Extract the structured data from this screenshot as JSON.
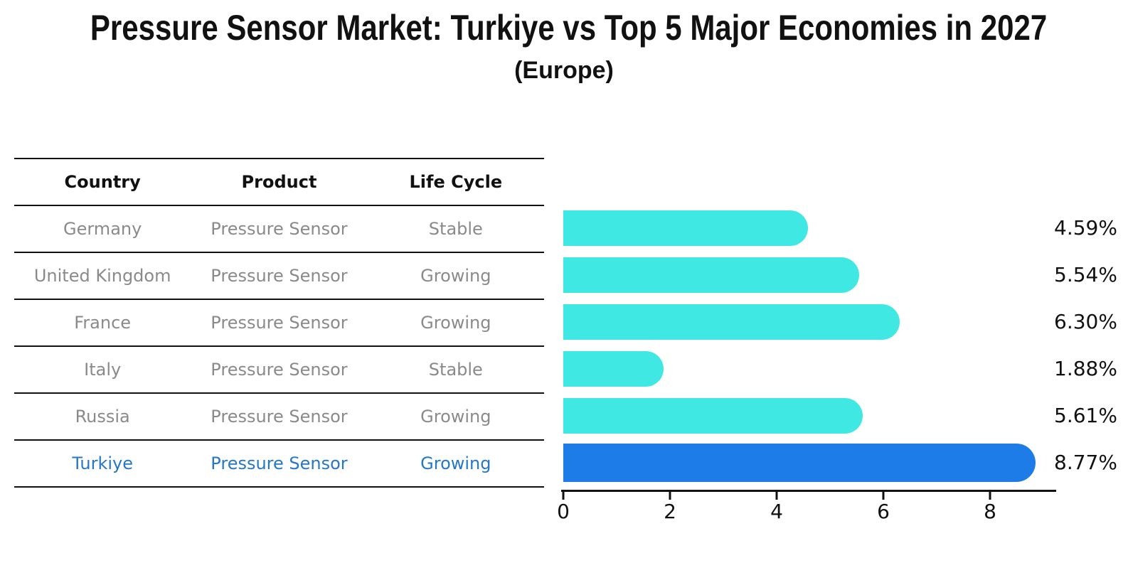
{
  "title": "Pressure Sensor Market: Turkiye vs Top 5 Major Economies in 2027",
  "subtitle": "(Europe)",
  "colors": {
    "bar": "#40e8e4",
    "highlight_bar": "#1e7ce8",
    "highlight_border": "#1e7ce8",
    "highlight_text": "#2577c9",
    "row_text": "#8a8a8a",
    "header_text": "#111111",
    "line": "#111111",
    "background": "#ffffff"
  },
  "table": {
    "headers": [
      "Country",
      "Product",
      "Life Cycle"
    ],
    "rows": [
      {
        "country": "Germany",
        "product": "Pressure Sensor",
        "life_cycle": "Stable",
        "highlight": false
      },
      {
        "country": "United Kingdom",
        "product": "Pressure Sensor",
        "life_cycle": "Growing",
        "highlight": false
      },
      {
        "country": "France",
        "product": "Pressure Sensor",
        "life_cycle": "Growing",
        "highlight": false
      },
      {
        "country": "Italy",
        "product": "Pressure Sensor",
        "life_cycle": "Stable",
        "highlight": false
      },
      {
        "country": "Russia",
        "product": "Pressure Sensor",
        "life_cycle": "Growing",
        "highlight": false
      },
      {
        "country": "Turkiye",
        "product": "Pressure Sensor",
        "life_cycle": "Growing",
        "highlight": true
      }
    ]
  },
  "chart_data": {
    "type": "bar",
    "orientation": "horizontal",
    "title": "Pressure Sensor Market: Turkiye vs Top 5 Major Economies in 2027 (Europe)",
    "categories": [
      "Germany",
      "United Kingdom",
      "France",
      "Italy",
      "Russia",
      "Turkiye"
    ],
    "values": [
      4.59,
      5.54,
      6.3,
      1.88,
      5.61,
      8.77
    ],
    "value_labels": [
      "4.59%",
      "5.54%",
      "6.30%",
      "1.88%",
      "5.61%",
      "8.77%"
    ],
    "highlight_index": 5,
    "xlabel": "",
    "ylabel": "",
    "xlim": [
      0,
      9.2
    ],
    "xticks": [
      0,
      2,
      4,
      6,
      8
    ],
    "grid": false,
    "legend": false
  }
}
